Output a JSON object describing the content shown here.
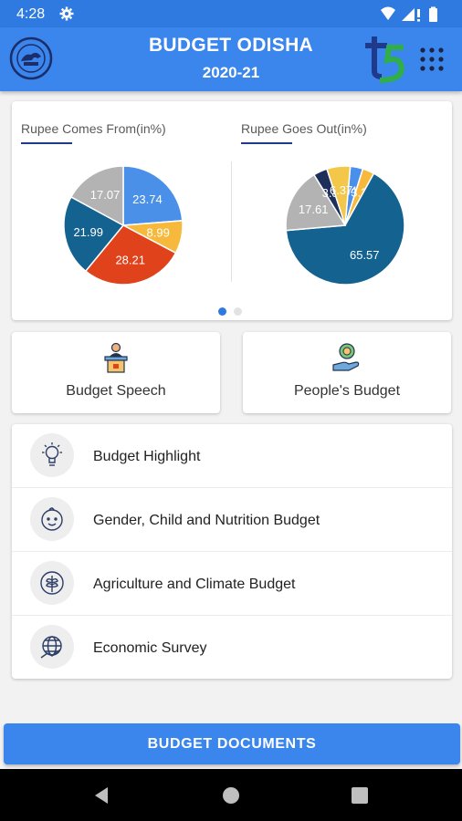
{
  "status": {
    "time": "4:28"
  },
  "app": {
    "title": "BUDGET ODISHA",
    "subtitle": "2020-21"
  },
  "charts": {
    "left_title": "Rupee Comes From(in%)",
    "right_title": "Rupee Goes Out(in%)"
  },
  "chart_data": [
    {
      "type": "pie",
      "title": "Rupee Comes From(in%)",
      "slices": [
        {
          "label": "23.74",
          "value": 23.74,
          "color": "#4a90e8"
        },
        {
          "label": "8.99",
          "value": 8.99,
          "color": "#f6b93b"
        },
        {
          "label": "28.21",
          "value": 28.21,
          "color": "#e0421c"
        },
        {
          "label": "21.99",
          "value": 21.99,
          "color": "#14628f"
        },
        {
          "label": "17.07",
          "value": 17.07,
          "color": "#b3b3b3"
        }
      ]
    },
    {
      "type": "pie",
      "title": "Rupee Goes Out(in%)",
      "slices": [
        {
          "label": "3.45",
          "value": 3.45,
          "color": "#4a90e8"
        },
        {
          "label": "3.2",
          "value": 3.2,
          "color": "#f6b93b"
        },
        {
          "label": "65.57",
          "value": 65.57,
          "color": "#14628f"
        },
        {
          "label": "17.61",
          "value": 17.61,
          "color": "#b3b3b3"
        },
        {
          "label": "3.8",
          "value": 3.8,
          "color": "#1d2f5a"
        },
        {
          "label": "6.37",
          "value": 6.37,
          "color": "#f3c74a"
        }
      ]
    }
  ],
  "carousel": {
    "pages": 2,
    "active": 0
  },
  "tiles": [
    {
      "label": "Budget Speech",
      "icon": "podium-speaker-icon"
    },
    {
      "label": "People's Budget",
      "icon": "hand-coin-icon"
    }
  ],
  "menu": [
    {
      "label": "Budget Highlight",
      "icon": "lightbulb-icon"
    },
    {
      "label": "Gender, Child and Nutrition Budget",
      "icon": "baby-face-icon"
    },
    {
      "label": "Agriculture and Climate Budget",
      "icon": "leaf-icon"
    },
    {
      "label": "Economic Survey",
      "icon": "globe-chart-icon"
    }
  ],
  "footer": {
    "button_label": "BUDGET DOCUMENTS"
  },
  "colors": {
    "primary": "#3b86ec",
    "status_bar": "#2f7ae0",
    "accent_underline": "#1f3a8a"
  }
}
